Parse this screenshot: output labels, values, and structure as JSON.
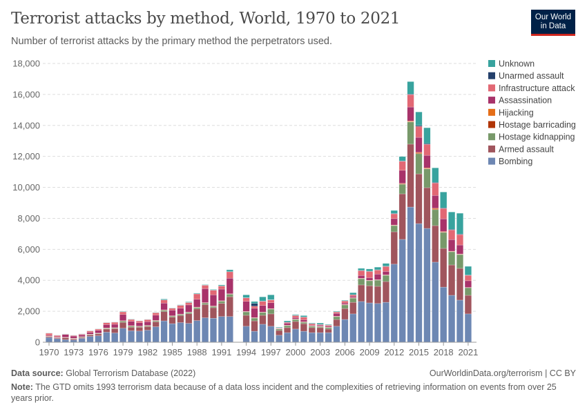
{
  "header": {
    "title": "Terrorist attacks by method, World, 1970 to 2021",
    "subtitle": "Number of terrorist attacks by the primary method the perpetrators used.",
    "logo_text": "Our World in Data"
  },
  "footer": {
    "source_label": "Data source:",
    "source": "Global Terrorism Database (2022)",
    "credit": "OurWorldinData.org/terrorism | CC BY",
    "note_label": "Note:",
    "note": "The GTD omits 1993 terrorism data because of a data loss incident and the complexities of retrieving information on events from over 25 years prior."
  },
  "chart_data": {
    "type": "bar",
    "stacked": true,
    "grid": "horizontal dashed",
    "legend_position": "right",
    "ylim": [
      0,
      18000
    ],
    "yticks": [
      0,
      2000,
      4000,
      6000,
      8000,
      10000,
      12000,
      14000,
      16000,
      18000
    ],
    "ytick_labels": [
      "0",
      "2,000",
      "4,000",
      "6,000",
      "8,000",
      "10,000",
      "12,000",
      "14,000",
      "16,000",
      "18,000"
    ],
    "xtick_labels": [
      "1970",
      "1973",
      "1976",
      "1979",
      "1982",
      "1985",
      "1988",
      "1991",
      "1994",
      "1997",
      "2000",
      "2003",
      "2006",
      "2009",
      "2012",
      "2015",
      "2018",
      "2021"
    ],
    "years": [
      1970,
      1971,
      1972,
      1973,
      1974,
      1975,
      1976,
      1977,
      1978,
      1979,
      1980,
      1981,
      1982,
      1983,
      1984,
      1985,
      1986,
      1987,
      1988,
      1989,
      1990,
      1991,
      1992,
      1994,
      1995,
      1996,
      1997,
      1998,
      1999,
      2000,
      2001,
      2002,
      2003,
      2004,
      2005,
      2006,
      2007,
      2008,
      2009,
      2010,
      2011,
      2012,
      2013,
      2014,
      2015,
      2016,
      2017,
      2018,
      2019,
      2020,
      2021
    ],
    "series": [
      {
        "name": "Bombing",
        "color": "#6d87b3",
        "values": [
          310,
          230,
          170,
          150,
          250,
          380,
          420,
          650,
          600,
          900,
          740,
          720,
          780,
          1000,
          1380,
          1200,
          1270,
          1220,
          1400,
          1580,
          1550,
          1660,
          1660,
          1030,
          710,
          1160,
          1030,
          450,
          620,
          850,
          710,
          620,
          620,
          620,
          1030,
          1470,
          1830,
          2630,
          2540,
          2500,
          2580,
          5040,
          6640,
          8730,
          7660,
          7350,
          5170,
          3560,
          3030,
          2720,
          1830
        ]
      },
      {
        "name": "Armed assault",
        "color": "#a0555d",
        "values": [
          60,
          50,
          120,
          70,
          60,
          90,
          120,
          200,
          280,
          380,
          230,
          250,
          230,
          320,
          600,
          420,
          450,
          620,
          750,
          850,
          680,
          850,
          1280,
          710,
          670,
          580,
          800,
          310,
          320,
          490,
          490,
          320,
          320,
          230,
          440,
          710,
          750,
          1070,
          1110,
          1110,
          1340,
          2090,
          2940,
          4060,
          3210,
          2630,
          2360,
          2500,
          1960,
          2050,
          1200
        ]
      },
      {
        "name": "Hostage kidnapping",
        "color": "#78996a",
        "values": [
          10,
          10,
          10,
          20,
          30,
          30,
          30,
          40,
          40,
          80,
          70,
          40,
          50,
          60,
          80,
          60,
          70,
          80,
          90,
          100,
          80,
          140,
          160,
          220,
          180,
          180,
          310,
          90,
          130,
          130,
          90,
          90,
          60,
          90,
          180,
          230,
          270,
          400,
          320,
          400,
          400,
          400,
          620,
          1430,
          1300,
          1210,
          1030,
          1030,
          850,
          890,
          490
        ]
      },
      {
        "name": "Hostage barricading",
        "color": "#b13507",
        "values": [
          10,
          10,
          10,
          10,
          10,
          10,
          10,
          20,
          10,
          20,
          20,
          20,
          20,
          20,
          20,
          20,
          20,
          20,
          20,
          20,
          20,
          20,
          20,
          20,
          20,
          20,
          20,
          20,
          20,
          20,
          20,
          20,
          20,
          20,
          20,
          20,
          20,
          20,
          20,
          20,
          20,
          20,
          30,
          30,
          40,
          30,
          40,
          30,
          20,
          20,
          10
        ]
      },
      {
        "name": "Hijacking",
        "color": "#e56e18",
        "values": [
          10,
          10,
          10,
          10,
          10,
          10,
          10,
          10,
          10,
          10,
          10,
          10,
          10,
          10,
          10,
          10,
          10,
          10,
          10,
          10,
          10,
          10,
          10,
          10,
          10,
          10,
          10,
          10,
          10,
          10,
          10,
          10,
          10,
          10,
          10,
          10,
          10,
          10,
          10,
          10,
          10,
          20,
          30,
          40,
          50,
          40,
          50,
          30,
          20,
          20,
          10
        ]
      },
      {
        "name": "Assassination",
        "color": "#a8336a",
        "values": [
          50,
          50,
          180,
          140,
          120,
          120,
          180,
          220,
          220,
          400,
          280,
          220,
          240,
          340,
          440,
          360,
          380,
          460,
          500,
          900,
          720,
          750,
          1000,
          650,
          600,
          420,
          380,
          20,
          130,
          90,
          130,
          40,
          70,
          60,
          180,
          90,
          90,
          180,
          170,
          360,
          220,
          410,
          840,
          900,
          970,
          810,
          830,
          820,
          750,
          580,
          430
        ]
      },
      {
        "name": "Infrastructure attack",
        "color": "#e26874",
        "values": [
          130,
          80,
          20,
          40,
          40,
          90,
          80,
          120,
          130,
          170,
          120,
          110,
          130,
          150,
          200,
          120,
          180,
          150,
          350,
          220,
          300,
          200,
          420,
          220,
          140,
          270,
          180,
          20,
          50,
          130,
          170,
          90,
          40,
          70,
          90,
          130,
          90,
          310,
          400,
          260,
          320,
          310,
          580,
          800,
          710,
          710,
          800,
          670,
          620,
          670,
          350
        ]
      },
      {
        "name": "Unarmed assault",
        "color": "#24406b",
        "values": [
          10,
          10,
          10,
          10,
          10,
          10,
          10,
          10,
          10,
          10,
          10,
          10,
          10,
          10,
          10,
          10,
          10,
          10,
          10,
          10,
          10,
          10,
          10,
          20,
          180,
          20,
          20,
          10,
          10,
          10,
          10,
          10,
          10,
          10,
          10,
          10,
          10,
          20,
          20,
          20,
          20,
          30,
          30,
          40,
          60,
          50,
          40,
          40,
          40,
          40,
          20
        ]
      },
      {
        "name": "Unknown",
        "color": "#38a39e",
        "values": [
          10,
          10,
          10,
          10,
          10,
          10,
          10,
          10,
          10,
          30,
          20,
          10,
          10,
          20,
          50,
          20,
          30,
          40,
          40,
          30,
          40,
          60,
          120,
          180,
          120,
          270,
          310,
          40,
          90,
          50,
          90,
          40,
          90,
          40,
          40,
          40,
          130,
          130,
          140,
          170,
          180,
          190,
          280,
          800,
          870,
          1020,
          940,
          1020,
          1120,
          1340,
          560
        ]
      }
    ]
  }
}
